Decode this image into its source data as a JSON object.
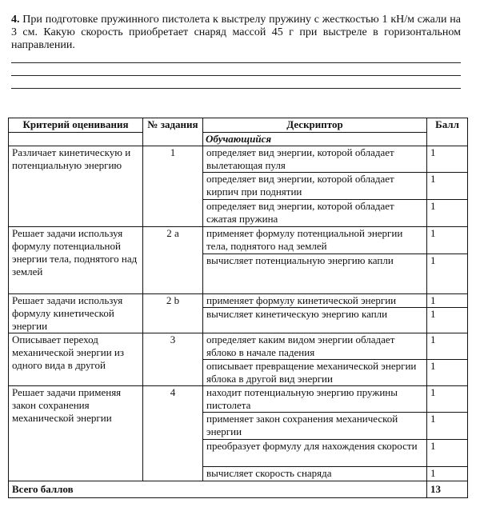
{
  "task": {
    "number": "4.",
    "text": "При подготовке пружинного пистолета к выстрелу пружину с жесткостью 1 кН/м сжали на 3 см. Какую скорость приобретает снаряд массой 45 г при выстреле в горизонтальном направлении."
  },
  "table": {
    "headers": {
      "criterion": "Критерий оценивания",
      "number": "№ задания",
      "descriptor": "Дескриптор",
      "descriptor_sub": "Обучающийся",
      "score": "Балл"
    },
    "groups": [
      {
        "criterion": "Различает кинетическую и потенциальную энергию",
        "number": "1",
        "items": [
          {
            "descriptor": "определяет вид энергии, которой обладает вылетающая пуля",
            "score": "1"
          },
          {
            "descriptor": "определяет вид энергии, которой обладает кирпич при поднятии",
            "score": "1"
          },
          {
            "descriptor": "определяет вид энергии, которой обладает сжатая пружина",
            "score": "1"
          }
        ]
      },
      {
        "criterion": "Решает задачи используя формулу потенциальной энергии тела, поднятого над землей",
        "number": "2 a",
        "items": [
          {
            "descriptor": "применяет формулу потенциальной энергии тела, поднятого над землей",
            "score": "1"
          },
          {
            "descriptor": "вычисляет потенциальную энергию капли",
            "score": "1"
          }
        ]
      },
      {
        "criterion": "Решает задачи используя формулу кинетической энергии",
        "number": "2 b",
        "items": [
          {
            "descriptor": "применяет формулу кинетической энергии",
            "score": "1"
          },
          {
            "descriptor": "вычисляет кинетическую энергию капли",
            "score": "1"
          }
        ]
      },
      {
        "criterion": "Описывает переход механической энергии из одного вида в другой",
        "number": "3",
        "items": [
          {
            "descriptor": "определяет каким видом энергии обладает яблоко в начале падения",
            "score": "1"
          },
          {
            "descriptor": "описывает превращение механической энергии яблока в другой вид энергии",
            "score": "1"
          }
        ]
      },
      {
        "criterion": "Решает задачи применяя закон сохранения механической энергии",
        "number": "4",
        "items": [
          {
            "descriptor": "находит потенциальную энергию пружины пистолета",
            "score": "1"
          },
          {
            "descriptor": "применяет закон сохранения механической энергии",
            "score": "1"
          },
          {
            "descriptor": "преобразует формулу для нахождения скорости",
            "score": "1"
          },
          {
            "descriptor": "вычисляет скорость снаряда",
            "score": "1"
          }
        ]
      }
    ],
    "total_label": "Всего баллов",
    "total_score": "13"
  }
}
